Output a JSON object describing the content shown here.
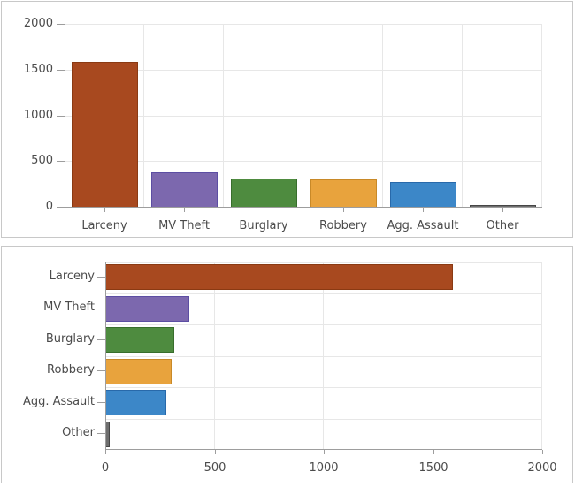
{
  "window": {
    "background": "#ffffff",
    "panel_border": "#c8c8c8"
  },
  "chart_style": {
    "grid_color": "#e7e7e7",
    "axis_color": "#9d9d9d",
    "label_color": "#4b4b4b",
    "bar_fill_colors": [
      "#a8491f",
      "#7c68ae",
      "#4e8b3f",
      "#e8a33d",
      "#3c87c8",
      "#6e6e6e"
    ],
    "bar_stroke_colors": [
      "#8a3a13",
      "#5c4ea3",
      "#386e2c",
      "#c88928",
      "#2869aa",
      "#464646"
    ]
  },
  "chart_data": [
    {
      "type": "bar",
      "orientation": "vertical",
      "title": "",
      "xlabel": "",
      "ylabel": "",
      "categories": [
        "Larceny",
        "MV Theft",
        "Burglary",
        "Robbery",
        "Agg. Assault",
        "Other"
      ],
      "values": [
        1590,
        385,
        315,
        305,
        280,
        20
      ],
      "ylim": [
        0,
        2000
      ],
      "yticks": [
        0,
        500,
        1000,
        1500,
        2000
      ],
      "ytick_labels": [
        "0",
        "500",
        "1000",
        "1500",
        "2000"
      ],
      "grid": true,
      "legend": "none"
    },
    {
      "type": "bar",
      "orientation": "horizontal",
      "title": "",
      "xlabel": "",
      "ylabel": "",
      "categories": [
        "Larceny",
        "MV Theft",
        "Burglary",
        "Robbery",
        "Agg. Assault",
        "Other"
      ],
      "values": [
        1590,
        385,
        315,
        305,
        280,
        20
      ],
      "xlim": [
        0,
        2000
      ],
      "xticks": [
        0,
        500,
        1000,
        1500,
        2000
      ],
      "xtick_labels": [
        "0",
        "500",
        "1000",
        "1500",
        "2000"
      ],
      "grid": true,
      "legend": "none"
    }
  ]
}
